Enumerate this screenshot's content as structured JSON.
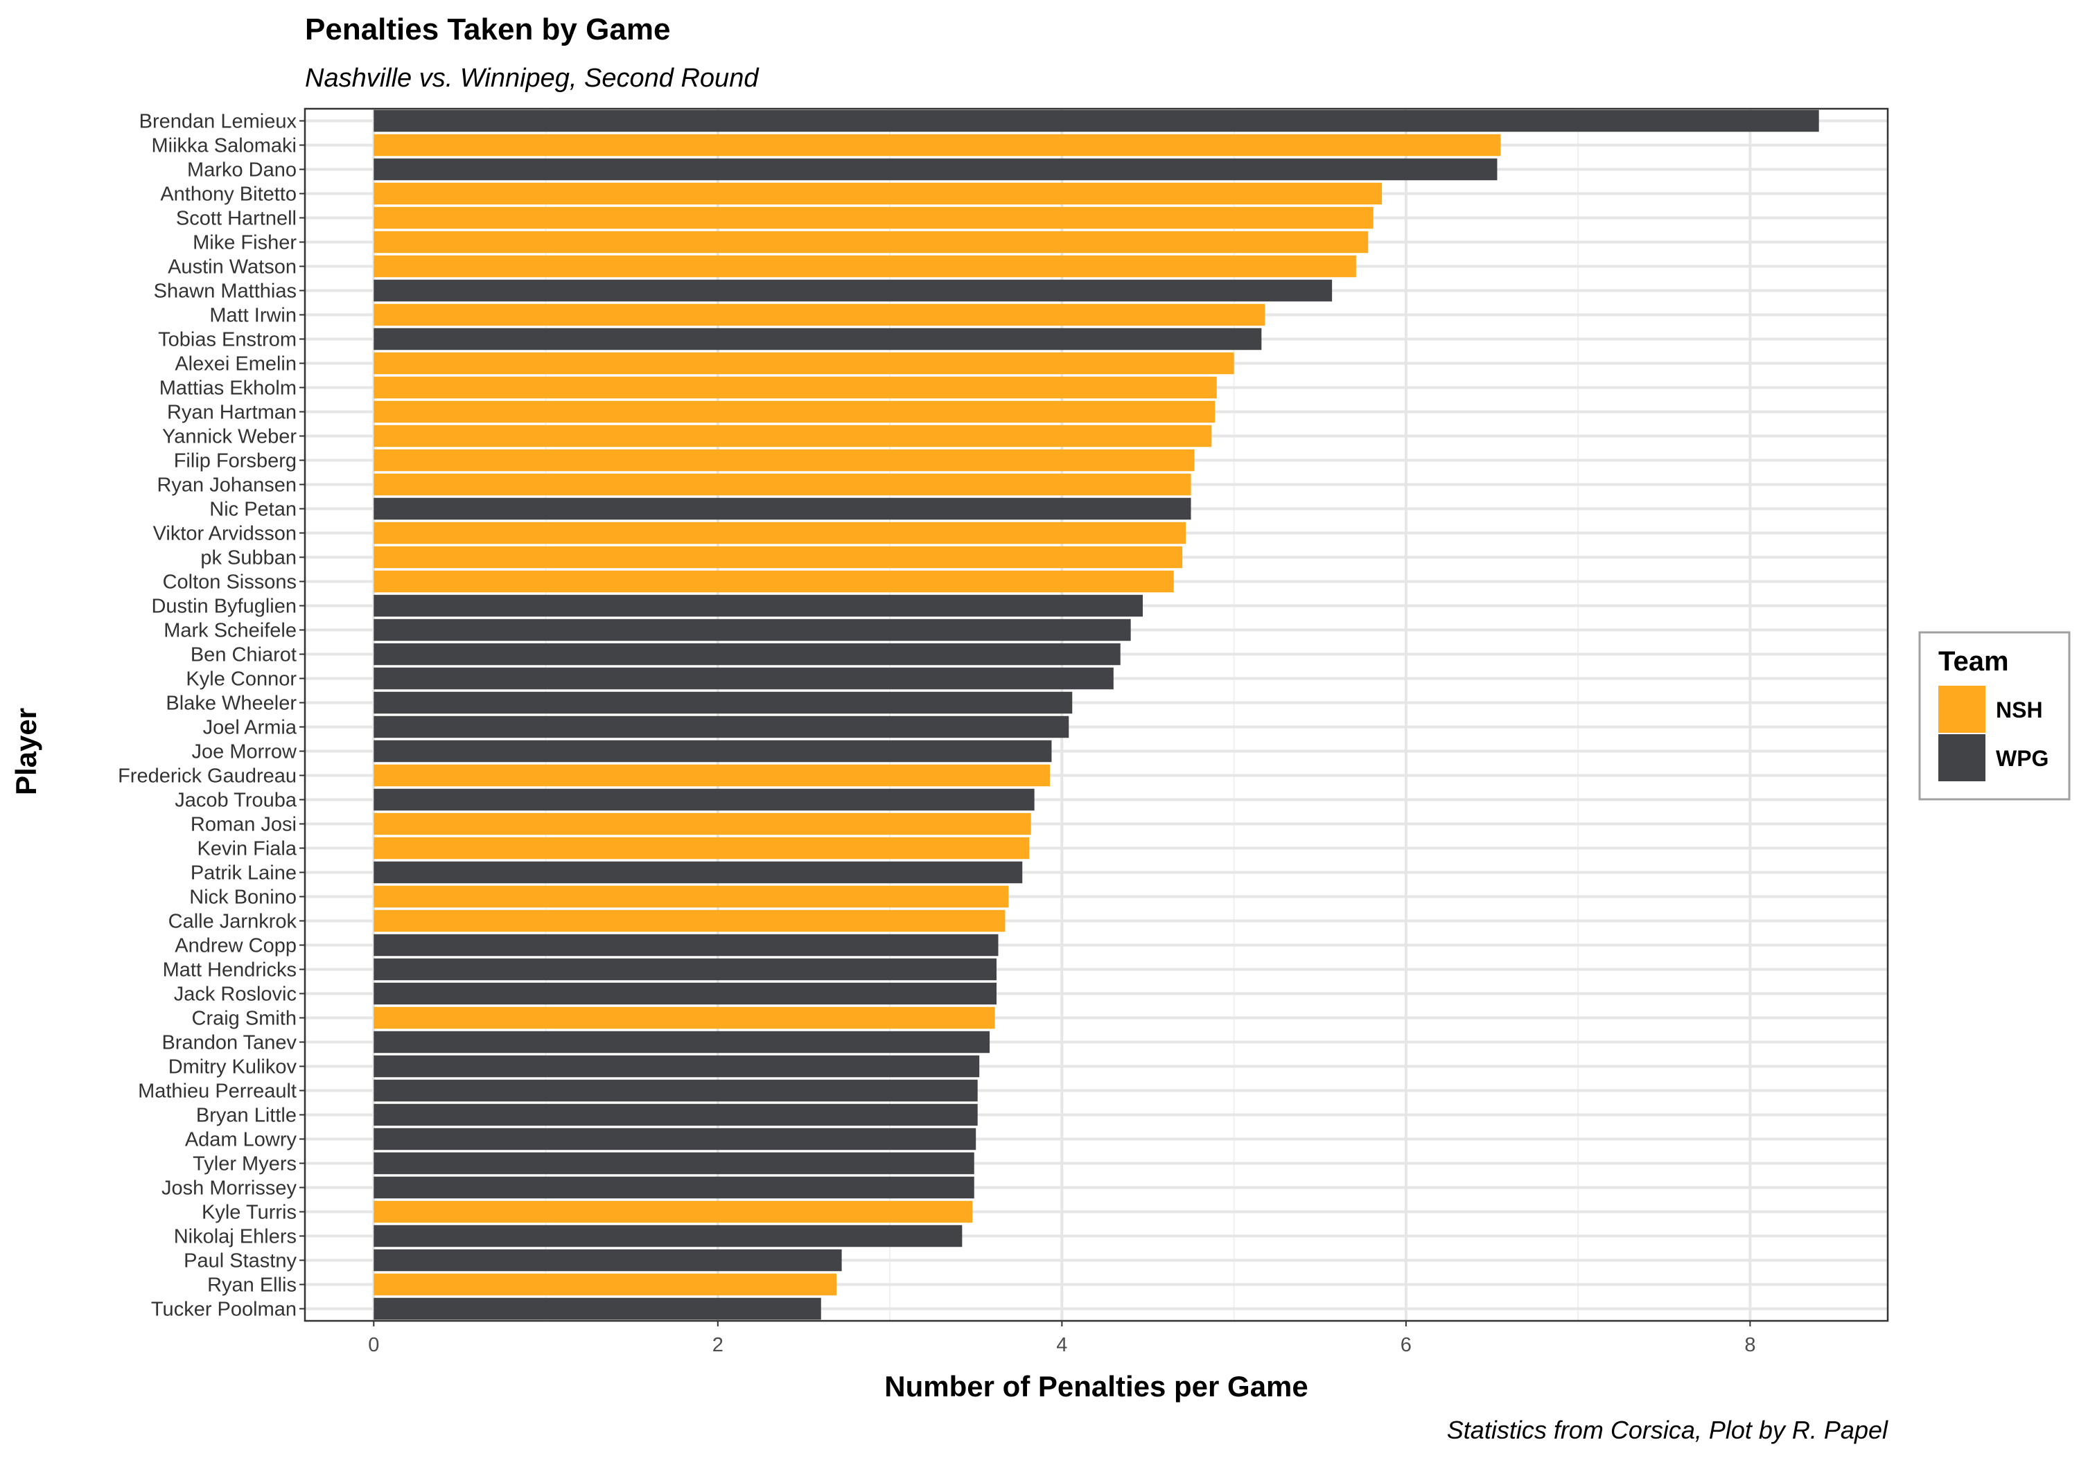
{
  "chart_data": {
    "type": "bar",
    "orientation": "horizontal",
    "title": "Penalties Taken by Game",
    "subtitle": "Nashville vs. Winnipeg, Second Round",
    "xlabel": "Number of Penalties per Game",
    "ylabel": "Player",
    "caption": "Statistics from Corsica, Plot by R. Papel",
    "xlim": [
      -0.4,
      8.8
    ],
    "xticks": [
      0,
      2,
      4,
      6,
      8
    ],
    "grid": true,
    "legend": {
      "title": "Team",
      "position": "right",
      "entries": [
        {
          "label": "NSH",
          "color": "#ffa91e"
        },
        {
          "label": "WPG",
          "color": "#424347"
        }
      ]
    },
    "colors": {
      "NSH": "#ffa91e",
      "WPG": "#424347"
    },
    "players": [
      {
        "name": "Brendan Lemieux",
        "team": "WPG",
        "value": 8.4
      },
      {
        "name": "Miikka Salomaki",
        "team": "NSH",
        "value": 6.55
      },
      {
        "name": "Marko Dano",
        "team": "WPG",
        "value": 6.53
      },
      {
        "name": "Anthony Bitetto",
        "team": "NSH",
        "value": 5.86
      },
      {
        "name": "Scott Hartnell",
        "team": "NSH",
        "value": 5.81
      },
      {
        "name": "Mike Fisher",
        "team": "NSH",
        "value": 5.78
      },
      {
        "name": "Austin Watson",
        "team": "NSH",
        "value": 5.71
      },
      {
        "name": "Shawn Matthias",
        "team": "WPG",
        "value": 5.57
      },
      {
        "name": "Matt Irwin",
        "team": "NSH",
        "value": 5.18
      },
      {
        "name": "Tobias Enstrom",
        "team": "WPG",
        "value": 5.16
      },
      {
        "name": "Alexei Emelin",
        "team": "NSH",
        "value": 5.0
      },
      {
        "name": "Mattias Ekholm",
        "team": "NSH",
        "value": 4.9
      },
      {
        "name": "Ryan Hartman",
        "team": "NSH",
        "value": 4.89
      },
      {
        "name": "Yannick Weber",
        "team": "NSH",
        "value": 4.87
      },
      {
        "name": "Filip Forsberg",
        "team": "NSH",
        "value": 4.77
      },
      {
        "name": "Ryan Johansen",
        "team": "NSH",
        "value": 4.75
      },
      {
        "name": "Nic Petan",
        "team": "WPG",
        "value": 4.75
      },
      {
        "name": "Viktor Arvidsson",
        "team": "NSH",
        "value": 4.72
      },
      {
        "name": "pk Subban",
        "team": "NSH",
        "value": 4.7
      },
      {
        "name": "Colton Sissons",
        "team": "NSH",
        "value": 4.65
      },
      {
        "name": "Dustin Byfuglien",
        "team": "WPG",
        "value": 4.47
      },
      {
        "name": "Mark Scheifele",
        "team": "WPG",
        "value": 4.4
      },
      {
        "name": "Ben Chiarot",
        "team": "WPG",
        "value": 4.34
      },
      {
        "name": "Kyle Connor",
        "team": "WPG",
        "value": 4.3
      },
      {
        "name": "Blake Wheeler",
        "team": "WPG",
        "value": 4.06
      },
      {
        "name": "Joel Armia",
        "team": "WPG",
        "value": 4.04
      },
      {
        "name": "Joe Morrow",
        "team": "WPG",
        "value": 3.94
      },
      {
        "name": "Frederick Gaudreau",
        "team": "NSH",
        "value": 3.93
      },
      {
        "name": "Jacob Trouba",
        "team": "WPG",
        "value": 3.84
      },
      {
        "name": "Roman Josi",
        "team": "NSH",
        "value": 3.82
      },
      {
        "name": "Kevin Fiala",
        "team": "NSH",
        "value": 3.81
      },
      {
        "name": "Patrik Laine",
        "team": "WPG",
        "value": 3.77
      },
      {
        "name": "Nick Bonino",
        "team": "NSH",
        "value": 3.69
      },
      {
        "name": "Calle Jarnkrok",
        "team": "NSH",
        "value": 3.67
      },
      {
        "name": "Andrew Copp",
        "team": "WPG",
        "value": 3.63
      },
      {
        "name": "Matt Hendricks",
        "team": "WPG",
        "value": 3.62
      },
      {
        "name": "Jack Roslovic",
        "team": "WPG",
        "value": 3.62
      },
      {
        "name": "Craig Smith",
        "team": "NSH",
        "value": 3.61
      },
      {
        "name": "Brandon Tanev",
        "team": "WPG",
        "value": 3.58
      },
      {
        "name": "Dmitry Kulikov",
        "team": "WPG",
        "value": 3.52
      },
      {
        "name": "Mathieu Perreault",
        "team": "WPG",
        "value": 3.51
      },
      {
        "name": "Bryan Little",
        "team": "WPG",
        "value": 3.51
      },
      {
        "name": "Adam Lowry",
        "team": "WPG",
        "value": 3.5
      },
      {
        "name": "Tyler Myers",
        "team": "WPG",
        "value": 3.49
      },
      {
        "name": "Josh Morrissey",
        "team": "WPG",
        "value": 3.49
      },
      {
        "name": "Kyle Turris",
        "team": "NSH",
        "value": 3.48
      },
      {
        "name": "Nikolaj Ehlers",
        "team": "WPG",
        "value": 3.42
      },
      {
        "name": "Paul Stastny",
        "team": "WPG",
        "value": 2.72
      },
      {
        "name": "Ryan Ellis",
        "team": "NSH",
        "value": 2.69
      },
      {
        "name": "Tucker Poolman",
        "team": "WPG",
        "value": 2.6
      }
    ]
  }
}
